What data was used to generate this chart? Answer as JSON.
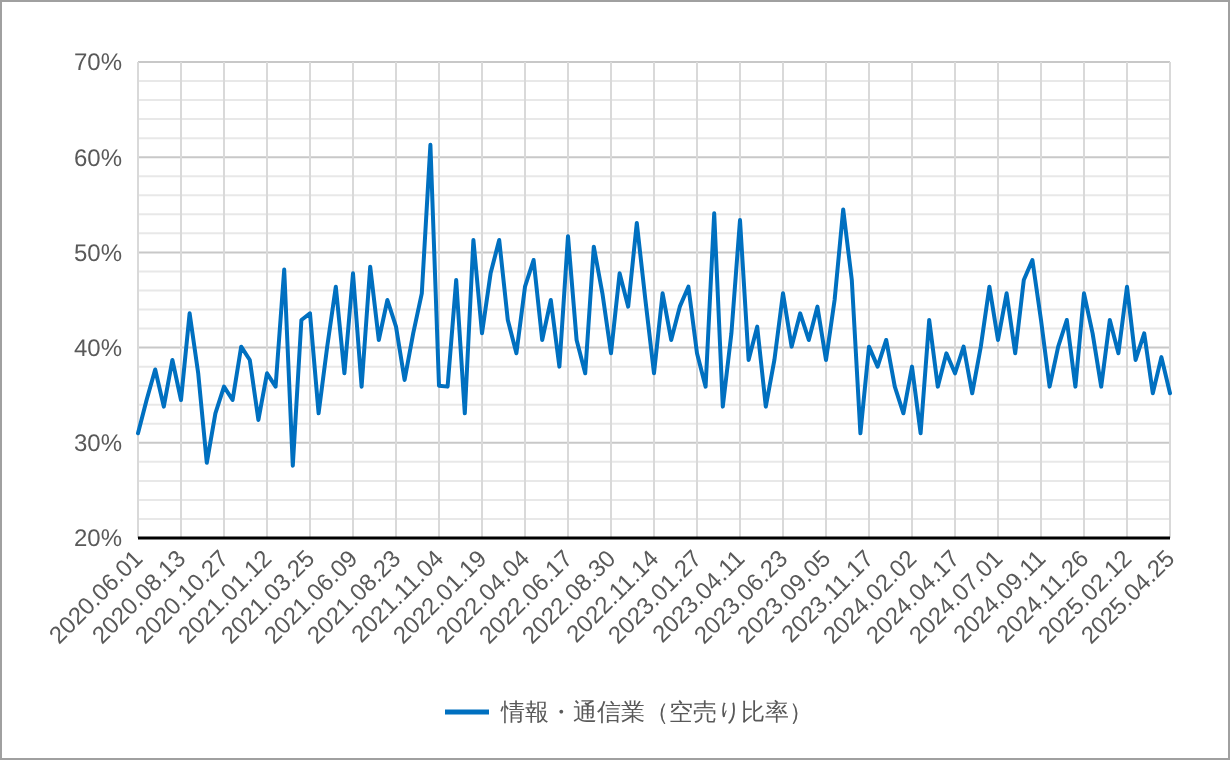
{
  "chart_data": {
    "type": "line",
    "categories": [
      "2020.06.01",
      null,
      null,
      null,
      null,
      "2020.08.13",
      null,
      null,
      null,
      null,
      "2020.10.27",
      null,
      null,
      null,
      null,
      "2021.01.12",
      null,
      null,
      null,
      null,
      "2021.03.25",
      null,
      null,
      null,
      null,
      "2021.06.09",
      null,
      null,
      null,
      null,
      "2021.08.23",
      null,
      null,
      null,
      null,
      "2021.11.04",
      null,
      null,
      null,
      null,
      "2022.01.19",
      null,
      null,
      null,
      null,
      "2022.04.04",
      null,
      null,
      null,
      null,
      "2022.06.17",
      null,
      null,
      null,
      null,
      "2022.08.30",
      null,
      null,
      null,
      null,
      "2022.11.14",
      null,
      null,
      null,
      null,
      "2023.01.27",
      null,
      null,
      null,
      null,
      "2023.04.11",
      null,
      null,
      null,
      null,
      "2023.06.23",
      null,
      null,
      null,
      null,
      "2023.09.05",
      null,
      null,
      null,
      null,
      "2023.11.17",
      null,
      null,
      null,
      null,
      "2024.02.02",
      null,
      null,
      null,
      null,
      "2024.04.17",
      null,
      null,
      null,
      null,
      "2024.07.01",
      null,
      null,
      null,
      null,
      "2024.09.11",
      null,
      null,
      null,
      null,
      "2024.11.26",
      null,
      null,
      null,
      null,
      "2025.02.12",
      null,
      null,
      null,
      null,
      "2025.04.25"
    ],
    "series": [
      {
        "name": "情報・通信業（空売り比率）",
        "color": "#0070c0",
        "values": [
          31.0,
          34.5,
          37.7,
          33.8,
          38.7,
          34.5,
          43.6,
          37.3,
          27.9,
          33.1,
          35.9,
          34.5,
          40.1,
          38.7,
          32.4,
          37.3,
          35.9,
          48.2,
          27.6,
          42.9,
          43.6,
          33.1,
          40.1,
          46.4,
          37.3,
          47.8,
          35.9,
          48.5,
          40.8,
          45.0,
          42.2,
          36.6,
          41.5,
          45.7,
          61.3,
          36.0,
          35.9,
          47.1,
          33.1,
          51.3,
          41.5,
          47.8,
          51.3,
          42.9,
          39.4,
          46.4,
          49.2,
          40.8,
          45.0,
          38.0,
          51.7,
          40.8,
          37.3,
          50.6,
          45.7,
          39.4,
          47.8,
          44.3,
          53.1,
          45.0,
          37.3,
          45.7,
          40.8,
          44.3,
          46.4,
          39.4,
          35.9,
          54.1,
          33.8,
          41.5,
          53.4,
          38.7,
          42.2,
          33.8,
          38.7,
          45.7,
          40.1,
          43.6,
          40.8,
          44.3,
          38.7,
          45.0,
          54.5,
          47.1,
          31.0,
          40.1,
          38.0,
          40.8,
          35.9,
          33.1,
          38.0,
          31.0,
          42.9,
          35.9,
          39.4,
          37.3,
          40.1,
          35.2,
          40.1,
          46.4,
          40.8,
          45.7,
          39.4,
          47.1,
          49.2,
          42.9,
          35.9,
          40.1,
          42.9,
          35.9,
          45.7,
          41.5,
          35.9,
          42.9,
          39.4,
          46.4,
          38.7,
          41.5,
          35.2,
          39.0,
          35.2
        ]
      }
    ],
    "ylim": [
      20,
      70
    ],
    "yticks": [
      {
        "value": 20,
        "label": "20%"
      },
      {
        "value": 22,
        "label": null
      },
      {
        "value": 24,
        "label": null
      },
      {
        "value": 26,
        "label": null
      },
      {
        "value": 28,
        "label": null
      },
      {
        "value": 30,
        "label": "30%"
      },
      {
        "value": 32,
        "label": null
      },
      {
        "value": 34,
        "label": null
      },
      {
        "value": 36,
        "label": null
      },
      {
        "value": 38,
        "label": null
      },
      {
        "value": 40,
        "label": "40%"
      },
      {
        "value": 42,
        "label": null
      },
      {
        "value": 44,
        "label": null
      },
      {
        "value": 46,
        "label": null
      },
      {
        "value": 48,
        "label": null
      },
      {
        "value": 50,
        "label": "50%"
      },
      {
        "value": 52,
        "label": null
      },
      {
        "value": 54,
        "label": null
      },
      {
        "value": 56,
        "label": null
      },
      {
        "value": 58,
        "label": null
      },
      {
        "value": 60,
        "label": "60%"
      },
      {
        "value": 62,
        "label": null
      },
      {
        "value": 64,
        "label": null
      },
      {
        "value": 66,
        "label": null
      },
      {
        "value": 68,
        "label": null
      },
      {
        "value": 70,
        "label": "70%"
      }
    ],
    "grid": true,
    "legend": "bottom",
    "marker": "none",
    "line_style": "solid"
  }
}
